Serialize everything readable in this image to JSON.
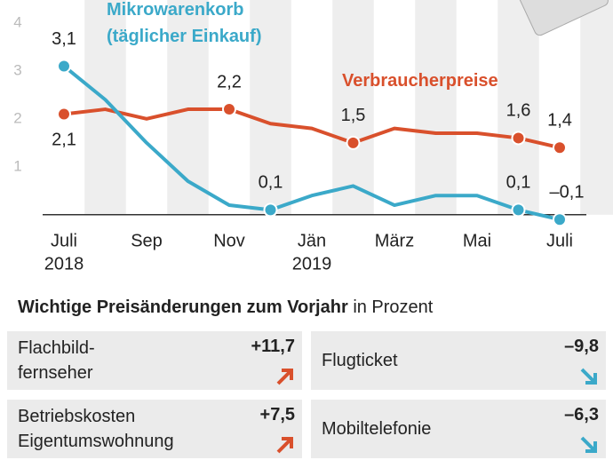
{
  "chart_data": {
    "type": "line",
    "categories": [
      "Juli",
      null,
      "Sep",
      null,
      "Nov",
      null,
      "Jän",
      null,
      "März",
      null,
      "Mai",
      null,
      "Juli"
    ],
    "years": [
      "2018",
      null,
      null,
      null,
      null,
      null,
      "2019",
      null,
      null,
      null,
      null,
      null,
      null
    ],
    "ylim": [
      -0.3,
      4.35
    ],
    "yticks": [
      1,
      2,
      3,
      4
    ],
    "grid": false,
    "series": [
      {
        "name": "Verbraucherpreise",
        "color": "#d9502c",
        "values": [
          2.1,
          2.2,
          2.0,
          2.2,
          2.2,
          1.9,
          1.8,
          1.5,
          1.8,
          1.7,
          1.7,
          1.6,
          1.4
        ],
        "value_labels": [
          "2,1",
          null,
          null,
          null,
          "2,2",
          null,
          null,
          "1,5",
          null,
          null,
          null,
          "1,6",
          "1,4"
        ]
      },
      {
        "name": "Mikrowarenkorb (täglicher Einkauf)",
        "color": "#3ba9c9",
        "values": [
          3.1,
          2.4,
          1.5,
          0.7,
          0.2,
          0.1,
          0.4,
          0.6,
          0.2,
          0.4,
          0.4,
          0.1,
          -0.1
        ],
        "value_labels": [
          "3,1",
          null,
          null,
          null,
          null,
          "0,1",
          null,
          null,
          null,
          null,
          null,
          "0,1",
          "–0,1"
        ]
      }
    ]
  },
  "changes": {
    "title": "Wichtige Preisänderungen zum Vorjahr",
    "unit": "in Prozent",
    "items": [
      {
        "label": "Flachbild-\nfernseher",
        "value": "+11,7",
        "arrow": "up"
      },
      {
        "label": "Flugticket",
        "value": "–9,8",
        "arrow": "down"
      },
      {
        "label": "Betriebskosten\nEigentumswohnung",
        "value": "+7,5",
        "arrow": "up"
      },
      {
        "label": "Mobiltelefonie",
        "value": "–6,3",
        "arrow": "down"
      }
    ]
  }
}
